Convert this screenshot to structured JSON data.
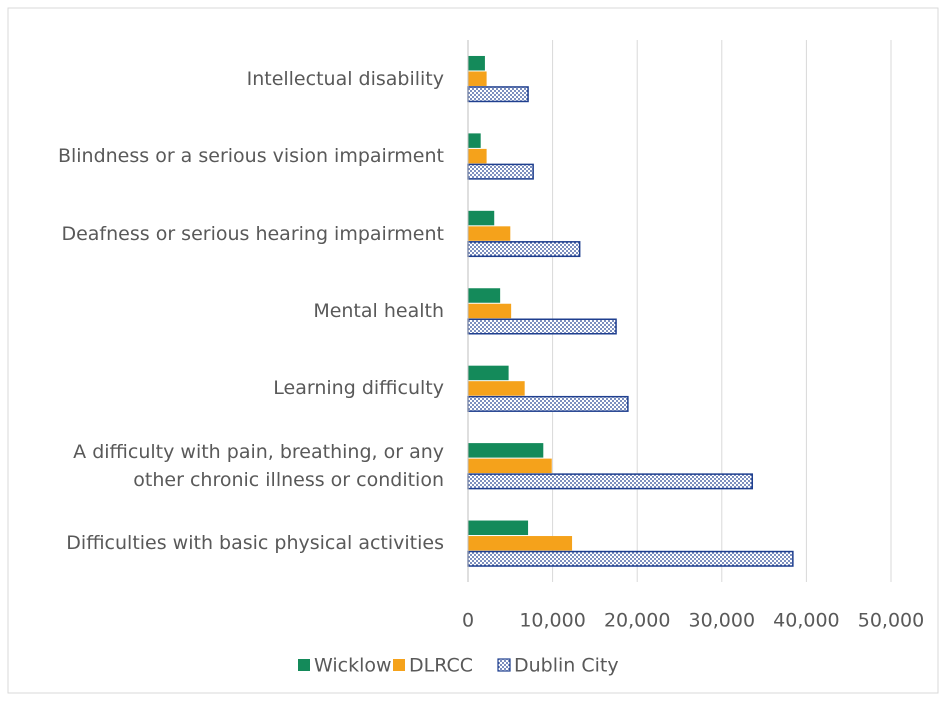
{
  "chart_data": {
    "type": "hbar",
    "categories": [
      "Intellectual disability",
      "Blindness or a serious vision impairment",
      "Deafness or serious hearing impairment",
      "Mental health",
      "Learning difficulty",
      "A difficulty with pain, breathing, or any other chronic illness or condition",
      "Difficulties with basic physical activities"
    ],
    "series": [
      {
        "name": "Wicklow",
        "color": "#148a5a",
        "values": [
          2000,
          1500,
          3100,
          3800,
          4800,
          8900,
          7100
        ]
      },
      {
        "name": "DLRCC",
        "color": "#f5a21b",
        "values": [
          2200,
          2200,
          5000,
          5100,
          6700,
          9900,
          12300
        ]
      },
      {
        "name": "Dublin City",
        "color": "#1f3f8f",
        "values": [
          7100,
          7700,
          13200,
          17500,
          18900,
          33600,
          38400
        ]
      }
    ],
    "xlim": [
      0,
      50000
    ],
    "xticks": [
      0,
      {
        "value": 10000,
        "label": "10,000"
      },
      {
        "value": 20000,
        "label": "20,000"
      },
      {
        "value": 30000,
        "label": "30,000"
      },
      {
        "value": 40000,
        "label": "40,000"
      },
      {
        "value": 50000,
        "label": "50,000"
      }
    ],
    "grid": true,
    "legend": "bottom"
  }
}
